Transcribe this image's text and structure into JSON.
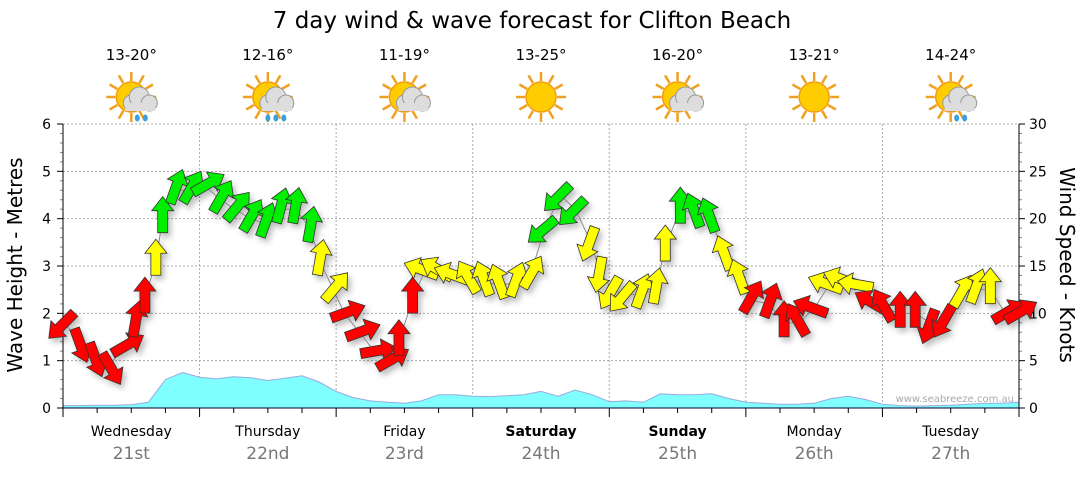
{
  "chart_data": {
    "type": "line",
    "title": "7 day wind & wave forecast for Clifton Beach",
    "ylabel_left": "Wave Height - Metres",
    "ylabel_right": "Wind Speed - Knots",
    "ylim_left": [
      0,
      6
    ],
    "ylim_right": [
      0,
      30
    ],
    "yticks_left": [
      "0",
      "1",
      "2",
      "3",
      "4",
      "5",
      "6"
    ],
    "yticks_right": [
      "0",
      "5",
      "10",
      "15",
      "20",
      "25",
      "30"
    ],
    "watermark": "www.seabreeze.com.au",
    "days": [
      {
        "name": "Wednesday",
        "date": "21st",
        "temp": "13-20°",
        "icon": "sun-cloud-rain",
        "bold": false
      },
      {
        "name": "Thursday",
        "date": "22nd",
        "temp": "12-16°",
        "icon": "sun-cloud-heavy-rain",
        "bold": false
      },
      {
        "name": "Friday",
        "date": "23rd",
        "temp": "11-19°",
        "icon": "sun-cloud",
        "bold": false
      },
      {
        "name": "Saturday",
        "date": "24th",
        "temp": "13-25°",
        "icon": "sun",
        "bold": true
      },
      {
        "name": "Sunday",
        "date": "25th",
        "temp": "16-20°",
        "icon": "sun-cloud",
        "bold": true
      },
      {
        "name": "Monday",
        "date": "26th",
        "temp": "13-21°",
        "icon": "sun",
        "bold": false
      },
      {
        "name": "Tuesday",
        "date": "27th",
        "temp": "14-24°",
        "icon": "sun-cloud-rain",
        "bold": false
      }
    ],
    "wave_color": "#80ffff",
    "wave_height_m": [
      0.05,
      0.05,
      0.06,
      0.06,
      0.07,
      0.12,
      0.6,
      0.75,
      0.65,
      0.62,
      0.66,
      0.64,
      0.58,
      0.63,
      0.68,
      0.55,
      0.35,
      0.22,
      0.15,
      0.12,
      0.1,
      0.15,
      0.28,
      0.28,
      0.25,
      0.24,
      0.26,
      0.28,
      0.35,
      0.25,
      0.38,
      0.28,
      0.13,
      0.15,
      0.12,
      0.3,
      0.28,
      0.28,
      0.3,
      0.2,
      0.12,
      0.1,
      0.08,
      0.08,
      0.1,
      0.2,
      0.25,
      0.18,
      0.08,
      0.05,
      0.04,
      0.05,
      0.06,
      0.08,
      0.1,
      0.1,
      0.12
    ],
    "wind_colors": {
      "light": "#ff0000",
      "moderate": "#ffff00",
      "strong": "#00ee00"
    },
    "wind_thresholds_knots": [
      12,
      19
    ],
    "wind": [
      {
        "day": 0.01,
        "knots": 9,
        "dir": 225
      },
      {
        "day": 0.12,
        "knots": 7,
        "dir": 160
      },
      {
        "day": 0.23,
        "knots": 5.5,
        "dir": 160
      },
      {
        "day": 0.34,
        "knots": 4.5,
        "dir": 150
      },
      {
        "day": 0.45,
        "knots": 6.5,
        "dir": 60
      },
      {
        "day": 0.53,
        "knots": 9,
        "dir": 10
      },
      {
        "day": 0.6,
        "knots": 11.5,
        "dir": 0
      },
      {
        "day": 0.68,
        "knots": 15.5,
        "dir": 0
      },
      {
        "day": 0.73,
        "knots": 20,
        "dir": 0
      },
      {
        "day": 0.82,
        "knots": 23,
        "dir": 20
      },
      {
        "day": 0.93,
        "knots": 23,
        "dir": 30
      },
      {
        "day": 1.04,
        "knots": 23.5,
        "dir": 60
      },
      {
        "day": 1.15,
        "knots": 22,
        "dir": 30
      },
      {
        "day": 1.26,
        "knots": 21,
        "dir": 40
      },
      {
        "day": 1.37,
        "knots": 20,
        "dir": 30
      },
      {
        "day": 1.48,
        "knots": 19.5,
        "dir": 20
      },
      {
        "day": 1.59,
        "knots": 21,
        "dir": 15
      },
      {
        "day": 1.7,
        "knots": 21,
        "dir": 10
      },
      {
        "day": 1.81,
        "knots": 19,
        "dir": 10
      },
      {
        "day": 1.88,
        "knots": 15.5,
        "dir": 10
      },
      {
        "day": 1.98,
        "knots": 12.5,
        "dir": 40
      },
      {
        "day": 2.06,
        "knots": 10,
        "dir": 70
      },
      {
        "day": 2.17,
        "knots": 8,
        "dir": 70
      },
      {
        "day": 2.28,
        "knots": 6,
        "dir": 80
      },
      {
        "day": 2.39,
        "knots": 5,
        "dir": 60
      },
      {
        "day": 2.46,
        "knots": 7,
        "dir": 0
      },
      {
        "day": 2.56,
        "knots": 11.5,
        "dir": 0
      },
      {
        "day": 2.65,
        "knots": 14.5,
        "dir": 290
      },
      {
        "day": 2.76,
        "knots": 14.5,
        "dir": 300
      },
      {
        "day": 2.87,
        "knots": 14,
        "dir": 290
      },
      {
        "day": 2.98,
        "knots": 13.5,
        "dir": 330
      },
      {
        "day": 3.09,
        "knots": 13.3,
        "dir": 340
      },
      {
        "day": 3.2,
        "knots": 13,
        "dir": 340
      },
      {
        "day": 3.31,
        "knots": 13.2,
        "dir": 20
      },
      {
        "day": 3.42,
        "knots": 14,
        "dir": 30
      },
      {
        "day": 3.53,
        "knots": 19,
        "dir": 230
      },
      {
        "day": 3.64,
        "knots": 22.5,
        "dir": 225
      },
      {
        "day": 3.75,
        "knots": 21,
        "dir": 225
      },
      {
        "day": 3.86,
        "knots": 17.7,
        "dir": 200
      },
      {
        "day": 3.93,
        "knots": 14.5,
        "dir": 190
      },
      {
        "day": 4.02,
        "knots": 12.5,
        "dir": 210
      },
      {
        "day": 4.11,
        "knots": 12,
        "dir": 220
      },
      {
        "day": 4.23,
        "knots": 12,
        "dir": 20
      },
      {
        "day": 4.34,
        "knots": 12.5,
        "dir": 10
      },
      {
        "day": 4.41,
        "knots": 17,
        "dir": 0
      },
      {
        "day": 4.52,
        "knots": 21,
        "dir": 0
      },
      {
        "day": 4.63,
        "knots": 20.5,
        "dir": 340
      },
      {
        "day": 4.74,
        "knots": 20,
        "dir": 340
      },
      {
        "day": 4.85,
        "knots": 16,
        "dir": 340
      },
      {
        "day": 4.96,
        "knots": 13.5,
        "dir": 340
      },
      {
        "day": 5.03,
        "knots": 11.4,
        "dir": 30
      },
      {
        "day": 5.17,
        "knots": 11,
        "dir": 20
      },
      {
        "day": 5.28,
        "knots": 9,
        "dir": 0
      },
      {
        "day": 5.39,
        "knots": 9,
        "dir": 330
      },
      {
        "day": 5.5,
        "knots": 10.5,
        "dir": 290
      },
      {
        "day": 5.61,
        "knots": 13,
        "dir": 290
      },
      {
        "day": 5.72,
        "knots": 13.5,
        "dir": 290
      },
      {
        "day": 5.83,
        "knots": 13,
        "dir": 280
      },
      {
        "day": 5.94,
        "knots": 11,
        "dir": 300
      },
      {
        "day": 6.02,
        "knots": 10.5,
        "dir": 330
      },
      {
        "day": 6.13,
        "knots": 10,
        "dir": 0
      },
      {
        "day": 6.24,
        "knots": 10,
        "dir": 0
      },
      {
        "day": 6.35,
        "knots": 9,
        "dir": 200
      },
      {
        "day": 6.46,
        "knots": 9.5,
        "dir": 210
      },
      {
        "day": 6.57,
        "knots": 12,
        "dir": 30
      },
      {
        "day": 6.68,
        "knots": 12.5,
        "dir": 20
      },
      {
        "day": 6.79,
        "knots": 12.5,
        "dir": 0
      },
      {
        "day": 6.9,
        "knots": 10,
        "dir": 60
      },
      {
        "day": 6.99,
        "knots": 10,
        "dir": 60
      }
    ]
  }
}
